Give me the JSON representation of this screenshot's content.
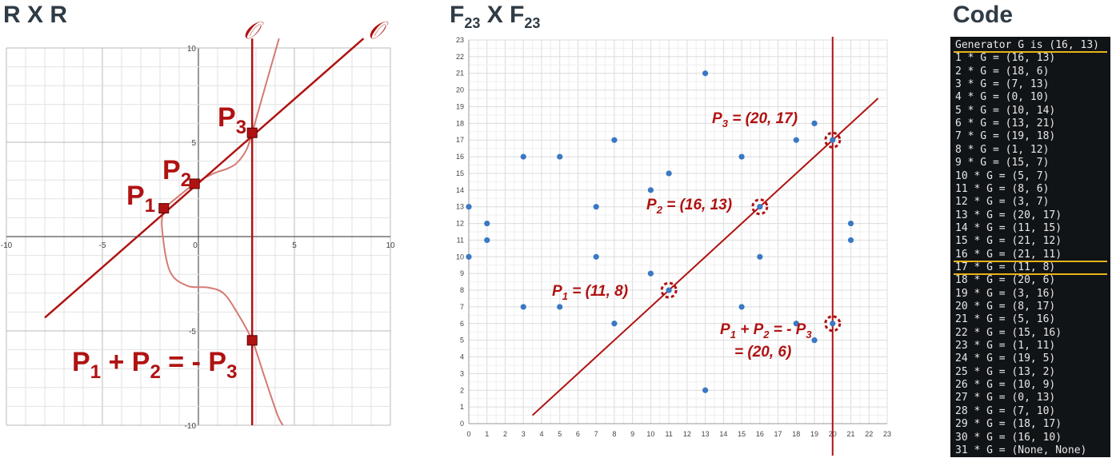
{
  "titles": {
    "rxr": "R X R",
    "f23_base": "F",
    "f23_sub": "23",
    "f23_x": " X ",
    "code": "Code"
  },
  "colors": {
    "curve_line": "#b01212",
    "curve_soft": "#d47a74",
    "point": "#3a78c3",
    "label": "#b01212",
    "highlight": "#e7b416"
  },
  "real_plot": {
    "x_ticks": [
      "-10",
      "-5",
      "0",
      "5",
      "10"
    ],
    "y_ticks": [
      "10",
      "5",
      "-5",
      "-10"
    ],
    "infinity_symbol": "𝒪",
    "labels": {
      "p1": "P",
      "p1_sub": "1",
      "p2": "P",
      "p2_sub": "2",
      "p3": "P",
      "p3_sub": "3",
      "sum_p1": "P",
      "sum_p1_sub": "1",
      "sum_plus": " + ",
      "sum_p2": "P",
      "sum_p2_sub": "2",
      "sum_eq": " = - ",
      "sum_p3": "P",
      "sum_p3_sub": "3"
    }
  },
  "finite_plot": {
    "x_ticks": [
      "0",
      "1",
      "2",
      "3",
      "4",
      "5",
      "6",
      "7",
      "8",
      "9",
      "10",
      "11",
      "12",
      "13",
      "14",
      "15",
      "16",
      "17",
      "18",
      "19",
      "20",
      "21",
      "22",
      "23"
    ],
    "y_ticks": [
      "0",
      "1",
      "2",
      "3",
      "4",
      "5",
      "6",
      "7",
      "8",
      "9",
      "10",
      "11",
      "12",
      "13",
      "14",
      "15",
      "16",
      "17",
      "18",
      "19",
      "20",
      "21",
      "22",
      "23"
    ],
    "labels": {
      "p1_a": "P",
      "p1_sub": "1",
      "p1_b": " = (11, 8)",
      "p2_a": "P",
      "p2_sub": "2",
      "p2_b": " = (16, 13)",
      "p3_a": "P",
      "p3_sub": "3",
      "p3_b": " = (20, 17)",
      "sum_a": "P",
      "sum_sub1": "1",
      "sum_b": " + P",
      "sum_sub2": "2",
      "sum_c": " = - P",
      "sum_sub3": "3",
      "sum_d": "= (20, 6)"
    }
  },
  "code": {
    "lines": [
      "Generator G is (16, 13)",
      "1 * G = (16, 13)",
      "2 * G = (18, 6)",
      "3 * G = (7, 13)",
      "4 * G = (0, 10)",
      "5 * G = (10, 14)",
      "6 * G = (13, 21)",
      "7 * G = (19, 18)",
      "8 * G = (1, 12)",
      "9 * G = (15, 7)",
      "10 * G = (5, 7)",
      "11 * G = (8, 6)",
      "12 * G = (3, 7)",
      "13 * G = (20, 17)",
      "14 * G = (11, 15)",
      "15 * G = (21, 12)",
      "16 * G = (21, 11)",
      "17 * G = (11, 8)",
      "18 * G = (20, 6)",
      "19 * G = (3, 16)",
      "20 * G = (8, 17)",
      "21 * G = (5, 16)",
      "22 * G = (15, 16)",
      "23 * G = (1, 11)",
      "24 * G = (19, 5)",
      "25 * G = (13, 2)",
      "26 * G = (10, 9)",
      "27 * G = (0, 13)",
      "28 * G = (7, 10)",
      "29 * G = (18, 17)",
      "30 * G = (16, 10)",
      "31 * G = (None, None)"
    ]
  },
  "chart_data": [
    {
      "type": "line",
      "x_range": [
        -10,
        10
      ],
      "y_range": [
        -10,
        10
      ],
      "grid": true,
      "series": [
        {
          "values": [
            [
              -8,
              -4.3
            ],
            [
              8.6,
              10.5
            ]
          ]
        },
        {
          "values": [
            [
              2.8,
              -10
            ],
            [
              2.8,
              10.5
            ]
          ]
        }
      ],
      "points": [
        {
          "x": -1.8,
          "y": 1.5
        },
        {
          "x": -0.2,
          "y": 2.8
        },
        {
          "x": 2.8,
          "y": 5.5
        },
        {
          "x": 2.8,
          "y": -5.5
        }
      ]
    },
    {
      "type": "scatter",
      "x_range": [
        0,
        23
      ],
      "y_range": [
        0,
        23
      ],
      "grid": true,
      "points": [
        [
          0,
          10
        ],
        [
          0,
          13
        ],
        [
          1,
          11
        ],
        [
          1,
          12
        ],
        [
          3,
          7
        ],
        [
          3,
          16
        ],
        [
          5,
          7
        ],
        [
          5,
          16
        ],
        [
          7,
          10
        ],
        [
          7,
          13
        ],
        [
          8,
          6
        ],
        [
          8,
          17
        ],
        [
          10,
          9
        ],
        [
          10,
          14
        ],
        [
          11,
          8
        ],
        [
          11,
          15
        ],
        [
          13,
          2
        ],
        [
          13,
          21
        ],
        [
          15,
          7
        ],
        [
          15,
          16
        ],
        [
          16,
          10
        ],
        [
          16,
          13
        ],
        [
          18,
          6
        ],
        [
          18,
          17
        ],
        [
          19,
          5
        ],
        [
          19,
          18
        ],
        [
          20,
          6
        ],
        [
          20,
          17
        ],
        [
          21,
          11
        ],
        [
          21,
          12
        ]
      ],
      "highlighted": [
        [
          11,
          8
        ],
        [
          16,
          13
        ],
        [
          20,
          17
        ],
        [
          20,
          6
        ]
      ],
      "line": [
        [
          3.5,
          0.5
        ],
        [
          22.5,
          19.5
        ]
      ],
      "vertical_x": 20
    }
  ]
}
